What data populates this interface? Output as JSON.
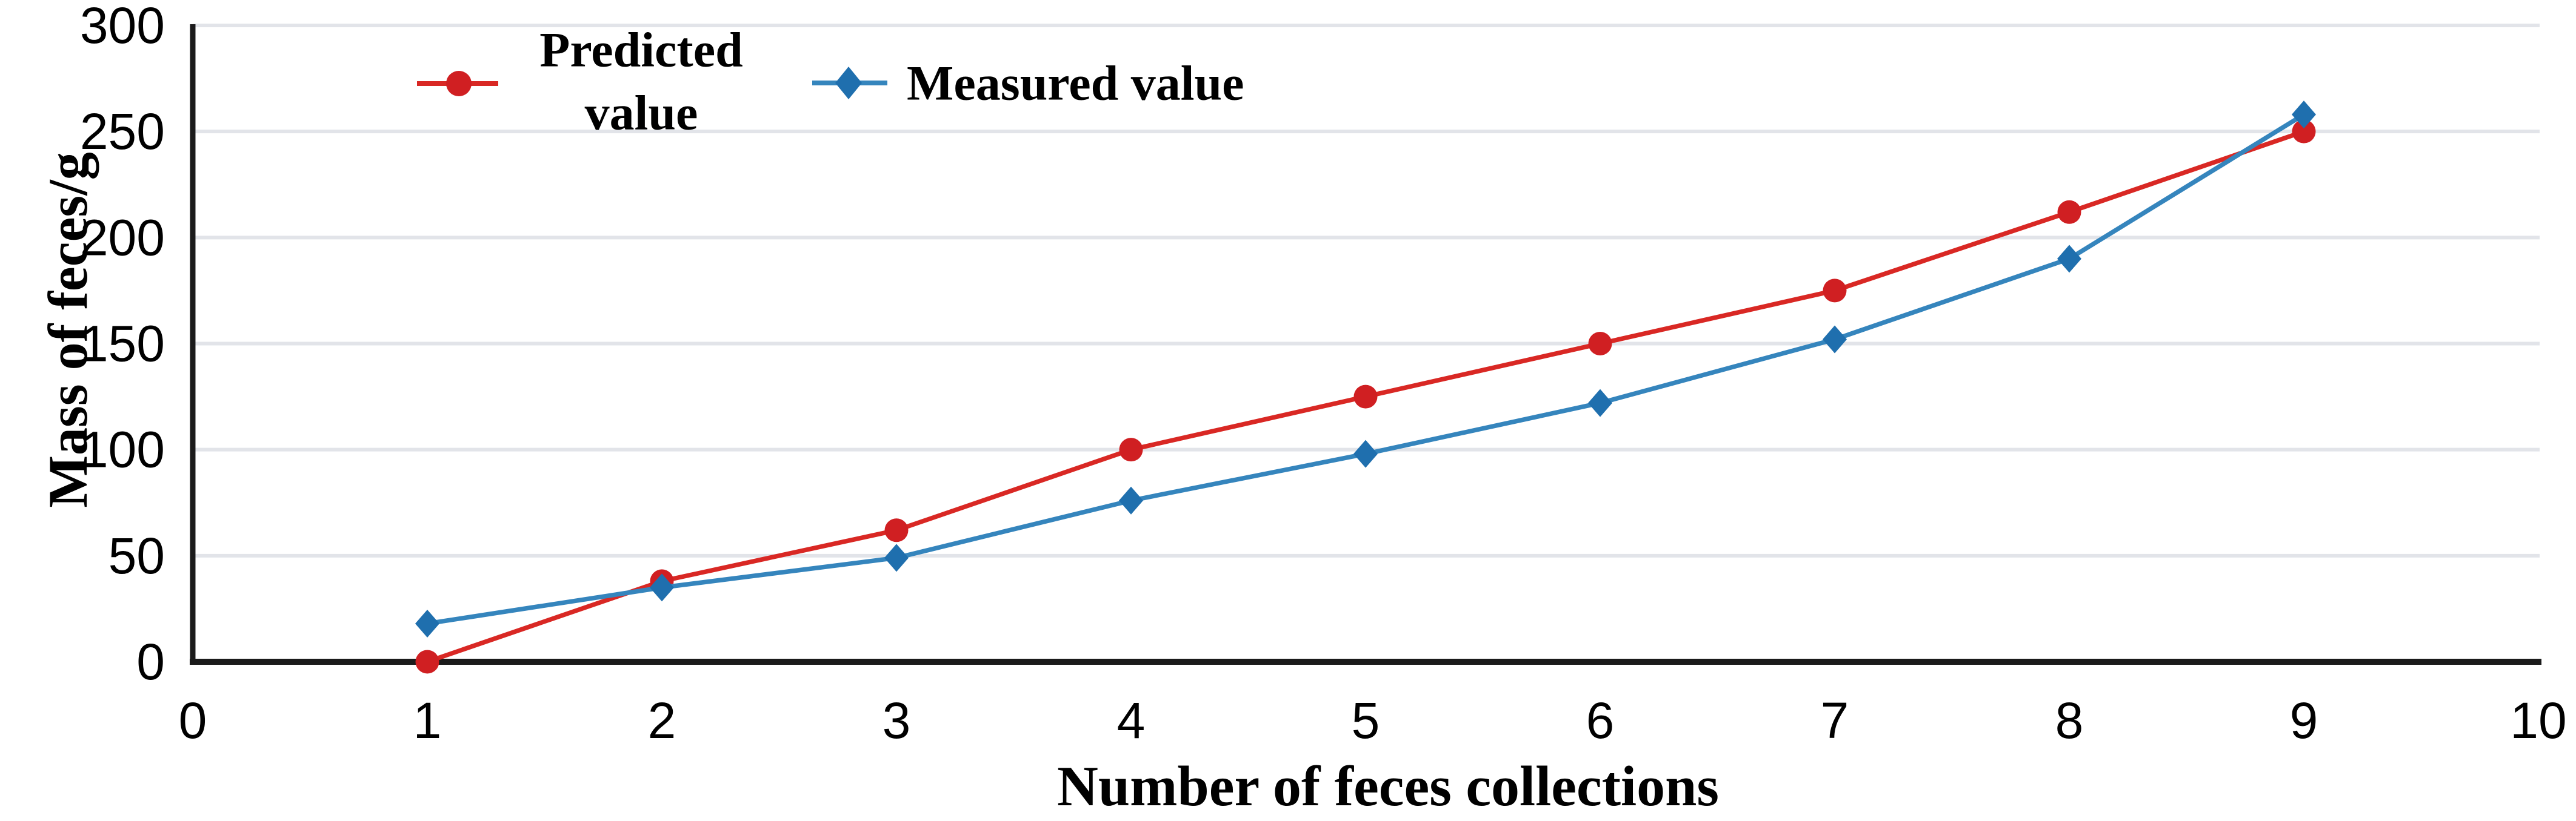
{
  "chart_data": {
    "type": "line",
    "title": "",
    "xlabel": "Number of feces collections",
    "ylabel": "Mass of feces/g",
    "x": [
      1,
      2,
      3,
      4,
      5,
      6,
      7,
      8,
      9
    ],
    "series": [
      {
        "name": "Predicted value",
        "legend_lines": [
          "Predicted",
          "value"
        ],
        "marker": "circle",
        "color": "#d92824",
        "marker_color": "#d01f22",
        "values": [
          0,
          38,
          62,
          100,
          125,
          150,
          175,
          212,
          250
        ]
      },
      {
        "name": "Measured value",
        "legend_lines": [
          "Measured value"
        ],
        "marker": "diamond",
        "color": "#3585bd",
        "marker_color": "#1f6fae",
        "values": [
          18,
          35,
          49,
          76,
          98,
          122,
          152,
          190,
          258
        ]
      }
    ],
    "xlim": [
      0,
      10
    ],
    "ylim": [
      0,
      300
    ],
    "x_ticks": [
      0,
      1,
      2,
      3,
      4,
      5,
      6,
      7,
      8,
      9,
      10
    ],
    "y_ticks": [
      0,
      50,
      100,
      150,
      200,
      250,
      300
    ],
    "grid": "horizontal",
    "gridline_color": "#e2e4e9",
    "axis_color": "#1b1b1b",
    "tick_label_color": "#000000",
    "legend_position": "top-left-inside"
  }
}
